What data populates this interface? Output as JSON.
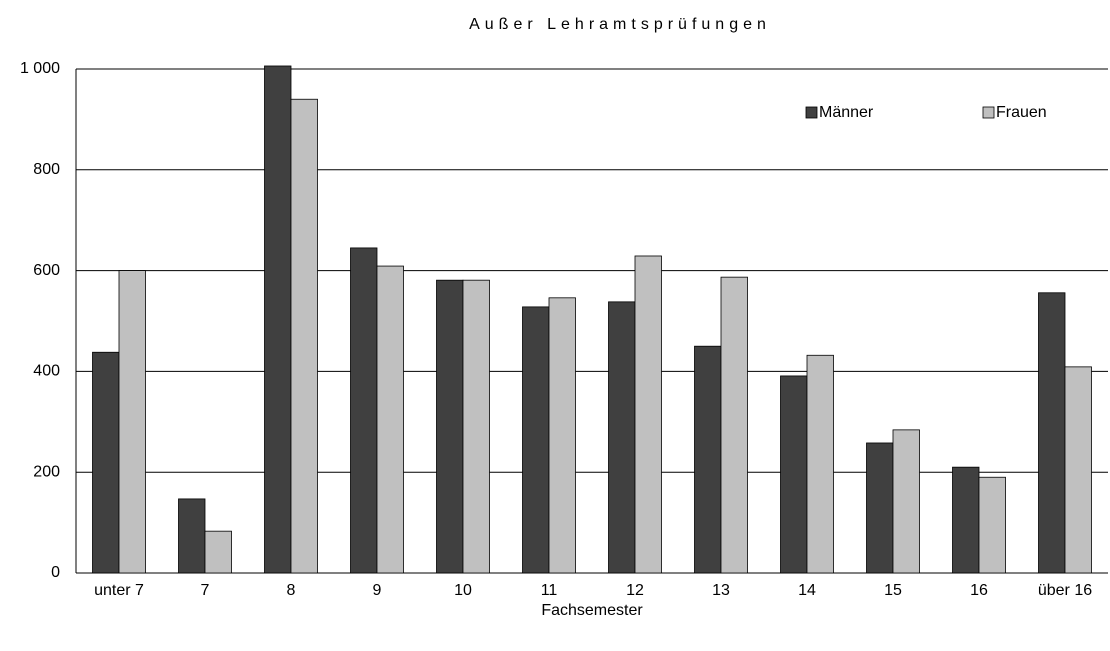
{
  "chart_data": {
    "type": "bar",
    "title": "Außer Lehramtsprüfungen",
    "x_label": "Fachsemester",
    "categories": [
      "unter 7",
      "7",
      "8",
      "9",
      "10",
      "11",
      "12",
      "13",
      "14",
      "15",
      "16",
      "über 16"
    ],
    "series": [
      {
        "name": "Männer",
        "color": "#404040",
        "values": [
          438,
          147,
          1006,
          645,
          581,
          528,
          538,
          450,
          391,
          258,
          210,
          556
        ]
      },
      {
        "name": "Frauen",
        "color": "#c0c0c0",
        "values": [
          600,
          83,
          940,
          609,
          581,
          546,
          629,
          587,
          432,
          284,
          190,
          409
        ]
      }
    ],
    "ylim": [
      0,
      1000
    ],
    "yticks": [
      0,
      200,
      400,
      600,
      800,
      {
        "value": 1000,
        "label": "1 000"
      }
    ],
    "grid": true
  }
}
